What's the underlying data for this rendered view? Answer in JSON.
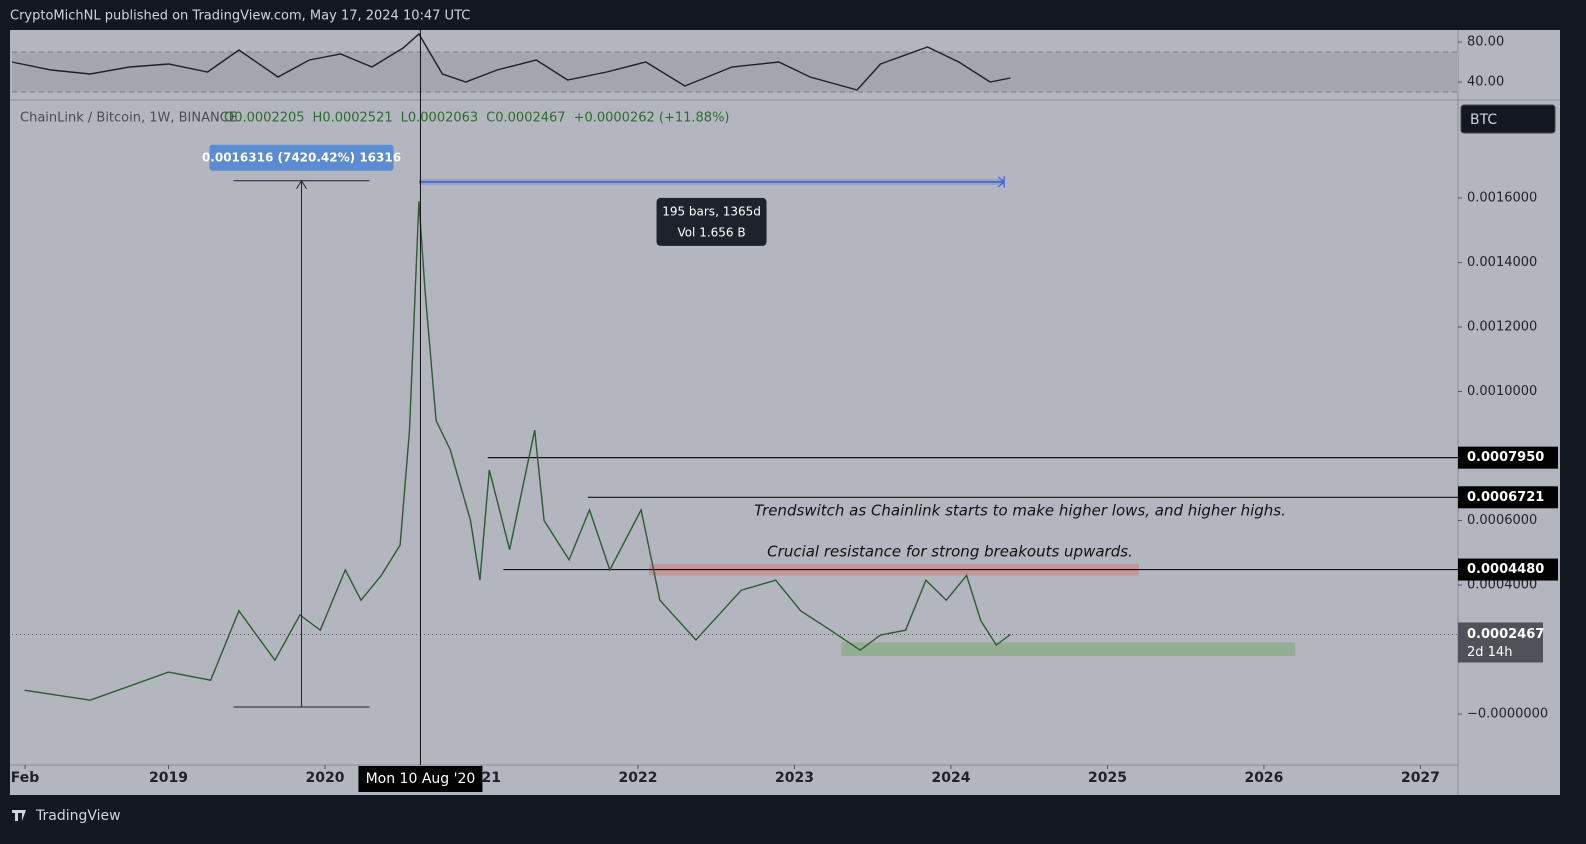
{
  "header": {
    "text": "CryptoMichNL published on TradingView.com, May 17, 2024 10:47 UTC"
  },
  "chart_data": [
    {
      "type": "line",
      "color": "#1f1f24",
      "x": [
        2018.0,
        2018.25,
        2018.5,
        2018.75,
        2019.0,
        2019.25,
        2019.45,
        2019.7,
        2019.9,
        2020.1,
        2020.3,
        2020.5,
        2020.6,
        2020.75,
        2020.9,
        2021.1,
        2021.35,
        2021.55,
        2021.8,
        2022.05,
        2022.3,
        2022.6,
        2022.9,
        2023.1,
        2023.4,
        2023.55,
        2023.85,
        2024.05,
        2024.25,
        2024.38
      ],
      "values": [
        60,
        52,
        48,
        55,
        58,
        50,
        72,
        45,
        62,
        68,
        55,
        74,
        88,
        48,
        40,
        52,
        62,
        42,
        50,
        60,
        36,
        55,
        60,
        45,
        32,
        58,
        75,
        60,
        40,
        44
      ],
      "xlim": [
        2018.0,
        2027.24
      ],
      "ylim": [
        22,
        90
      ],
      "yticks": [
        {
          "value": 80,
          "label": "80.00"
        },
        {
          "value": 40,
          "label": "40.00"
        }
      ],
      "band": [
        30,
        70
      ]
    },
    {
      "type": "line",
      "title": "ChainLink / Bitcoin, 1W, BINANCE",
      "ohlc": [
        "O0.0002205",
        "H0.0002521",
        "L0.0002063",
        "C0.0002467",
        "+0.0000262 (+11.88%)"
      ],
      "currency": "BTC",
      "color": "#2f5a34",
      "x": [
        2018.08,
        2018.5,
        2019.0,
        2019.27,
        2019.45,
        2019.68,
        2019.84,
        2019.97,
        2020.13,
        2020.23,
        2020.36,
        2020.48,
        2020.54,
        2020.6,
        2020.64,
        2020.71,
        2020.8,
        2020.93,
        2020.99,
        2021.05,
        2021.18,
        2021.34,
        2021.4,
        2021.56,
        2021.69,
        2021.82,
        2022.02,
        2022.14,
        2022.37,
        2022.66,
        2022.88,
        2023.04,
        2023.23,
        2023.42,
        2023.55,
        2023.71,
        2023.84,
        2023.97,
        2024.1,
        2024.19,
        2024.29,
        2024.38
      ],
      "values": [
        7.4e-05,
        4.3e-05,
        0.00013,
        0.000105,
        0.00032,
        0.000167,
        0.000307,
        0.00026,
        0.000447,
        0.000353,
        0.00043,
        0.000524,
        0.00088,
        0.00159,
        0.00131,
        0.00091,
        0.00082,
        0.0006,
        0.000415,
        0.000757,
        0.00051,
        0.00088,
        0.0006,
        0.000478,
        0.000633,
        0.000447,
        0.000633,
        0.000353,
        0.00023,
        0.000384,
        0.000415,
        0.00032,
        0.00026,
        0.000198,
        0.000245,
        0.00026,
        0.000415,
        0.000353,
        0.00043,
        0.00029,
        0.000214,
        0.0002467
      ],
      "xlim": [
        2018.0,
        2027.24
      ],
      "ylim": [
        -0.000158,
        0.001904
      ],
      "xticks": [
        {
          "value": 2018.083,
          "label": "Feb"
        },
        2019,
        2020,
        2021,
        2022,
        2023,
        2024,
        2025,
        2026,
        2027
      ],
      "yticks": [
        {
          "value": 0.0016,
          "label": "0.0016000"
        },
        {
          "value": 0.0014,
          "label": "0.0014000"
        },
        {
          "value": 0.0012,
          "label": "0.0012000"
        },
        {
          "value": 0.001,
          "label": "0.0010000"
        },
        {
          "value": 0.0006,
          "label": "0.0006000"
        },
        {
          "value": 0.0004,
          "label": "0.0004000"
        },
        {
          "value": 0,
          "label": "−0.0000000"
        }
      ],
      "levels": [
        {
          "value": 0.000795,
          "label": "0.0007950",
          "from": 2021.04
        },
        {
          "value": 0.0006721,
          "label": "0.0006721",
          "from": 2021.68
        },
        {
          "value": 0.000448,
          "label": "0.0004480",
          "from": 2021.14
        }
      ],
      "last_price": {
        "value": 0.0002467,
        "label": "0.0002467",
        "countdown": "2d 14h"
      },
      "zones": [
        {
          "x": [
            2022.07,
            2025.2
          ],
          "y": [
            0.00043,
            0.000465
          ],
          "color": "#c98c96"
        },
        {
          "x": [
            2023.3,
            2026.2
          ],
          "y": [
            0.00018,
            0.000222
          ],
          "color": "#8fac8c"
        }
      ],
      "measure": {
        "label": "0.0016316 (7420.42%) 16316",
        "x": 2019.85,
        "range": [
          2.19e-05,
          0.0016535
        ]
      },
      "date_range": {
        "bars": "195 bars, 1365d",
        "volume": "Vol 1.656 B",
        "x": [
          2020.6,
          2024.34
        ],
        "y": 0.00165
      },
      "crosshair": {
        "label": "Mon 10 Aug '20",
        "x": 2020.61
      },
      "annotations": [
        "Trendswitch as Chainlink starts to make higher lows, and higher highs.",
        "Crucial resistance for strong breakouts upwards."
      ]
    }
  ],
  "footer": {
    "brand": "TradingView"
  }
}
